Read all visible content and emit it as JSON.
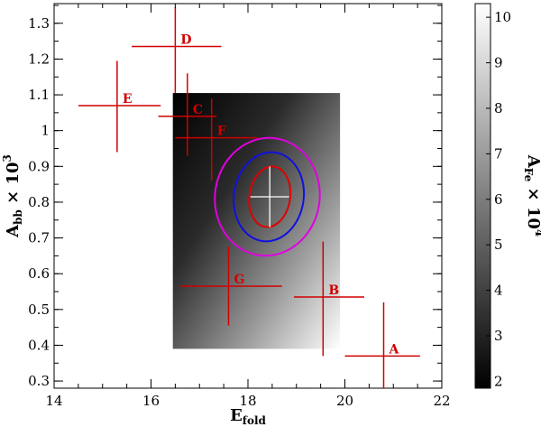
{
  "chart_data": {
    "type": "scatter",
    "xlabel": {
      "main": "E",
      "sub": "fold"
    },
    "ylabel": {
      "main": "A",
      "sub": "bb",
      "suffix": " × 10",
      "sup": "3"
    },
    "xlim": [
      14,
      22
    ],
    "ylim": [
      0.28,
      1.355
    ],
    "xticks": [
      14,
      16,
      18,
      20,
      22
    ],
    "yticks": [
      0.3,
      0.4,
      0.5,
      0.6,
      0.7,
      0.8,
      0.9,
      1,
      1.1,
      1.2,
      1.3
    ],
    "ytick_labels": [
      "0.3",
      "0.4",
      "0.5",
      "0.6",
      "0.7",
      "0.8",
      "0.9",
      "1",
      "1.1",
      "1.2",
      "1.3"
    ],
    "points": [
      {
        "label": "A",
        "x": 20.8,
        "y": 0.37,
        "xerr": [
          0.8,
          0.75
        ],
        "yerr": [
          0.09,
          0.15
        ]
      },
      {
        "label": "B",
        "x": 19.55,
        "y": 0.535,
        "xerr": [
          0.6,
          0.85
        ],
        "yerr": [
          0.165,
          0.155
        ]
      },
      {
        "label": "C",
        "x": 16.75,
        "y": 1.04,
        "xerr": [
          0.6,
          0.6
        ],
        "yerr": [
          0.11,
          0.12
        ]
      },
      {
        "label": "D",
        "x": 16.5,
        "y": 1.235,
        "xerr": [
          0.9,
          0.95
        ],
        "yerr": [
          0.13,
          0.11
        ]
      },
      {
        "label": "E",
        "x": 15.3,
        "y": 1.07,
        "xerr": [
          0.8,
          0.9
        ],
        "yerr": [
          0.13,
          0.125
        ]
      },
      {
        "label": "F",
        "x": 17.25,
        "y": 0.98,
        "xerr": [
          0.75,
          0.95
        ],
        "yerr": [
          0.12,
          0.11
        ]
      },
      {
        "label": "G",
        "x": 17.6,
        "y": 0.565,
        "xerr": [
          1.0,
          1.1
        ],
        "yerr": [
          0.11,
          0.11
        ]
      }
    ],
    "best_fit": {
      "x": 18.45,
      "y": 0.815,
      "xerr": [
        0.4,
        0.4
      ],
      "yerr": [
        0.085,
        0.085
      ]
    },
    "contours": [
      {
        "level": 1,
        "color": "#e00000",
        "cx": 18.45,
        "cy": 0.815,
        "rx": 0.42,
        "ry": 0.085,
        "tilt": -0.15
      },
      {
        "level": 2,
        "color": "#1010e0",
        "cx": 18.43,
        "cy": 0.815,
        "rx": 0.72,
        "ry": 0.125,
        "tilt": -0.15
      },
      {
        "level": 3,
        "color": "#e000e0",
        "cx": 18.4,
        "cy": 0.815,
        "rx": 1.08,
        "ry": 0.165,
        "tilt": -0.15
      }
    ],
    "color_map": {
      "label": {
        "main": "A",
        "sub": "Fe",
        "suffix": " × 10",
        "sup": "4"
      },
      "range": [
        1.85,
        10.3
      ],
      "ticks": [
        2,
        3,
        4,
        5,
        6,
        7,
        8,
        9,
        10
      ],
      "region": {
        "x": [
          16.45,
          19.9
        ],
        "y": [
          0.39,
          1.105
        ]
      },
      "gradient": "grayscale: dark at top-left, light at bottom-right"
    },
    "grid": false,
    "legend": "none"
  }
}
